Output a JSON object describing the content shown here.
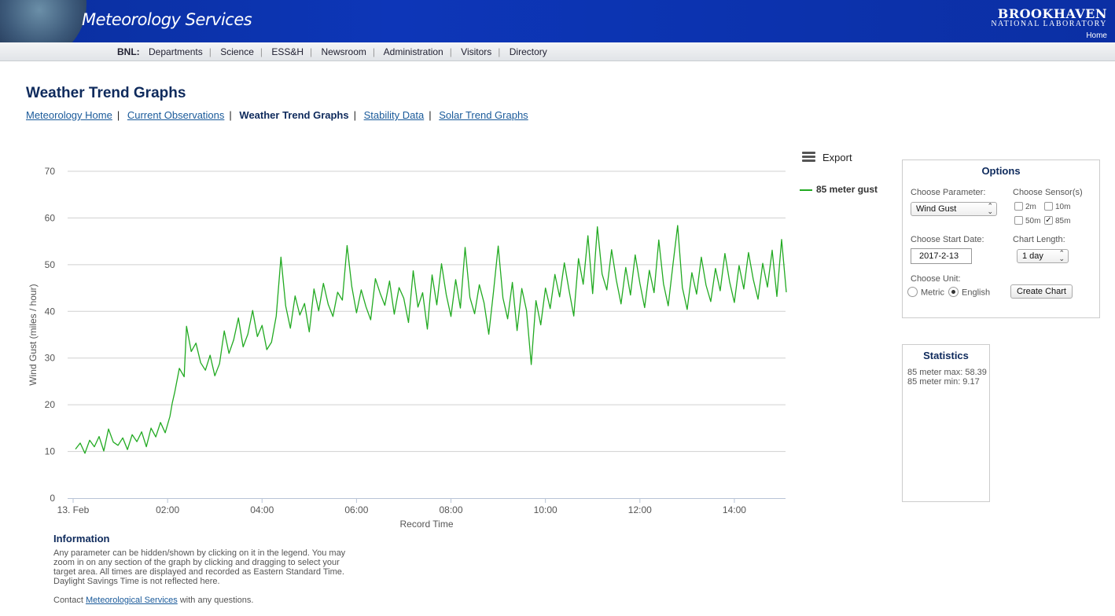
{
  "header": {
    "site_title": "Meteorology Services",
    "logo_top": "BROOKHAVEN",
    "logo_bottom": "NATIONAL LABORATORY",
    "home_link": "Home"
  },
  "nav": {
    "prefix": "BNL:",
    "items": [
      "Departments",
      "Science",
      "ESS&H",
      "Newsroom",
      "Administration",
      "Visitors",
      "Directory"
    ]
  },
  "page": {
    "title": "Weather Trend Graphs",
    "subnav": {
      "items": [
        "Meteorology Home",
        "Current Observations",
        "Weather Trend Graphs",
        "Stability Data",
        "Solar Trend Graphs"
      ],
      "separator": "|"
    }
  },
  "chart_controls": {
    "export_label": "Export",
    "menu_icon": "hamburger-menu-icon"
  },
  "chart_data": {
    "type": "line",
    "ylabel": "Wind Gust (miles / hour)",
    "xlabel": "Record Time",
    "ylim": [
      0,
      70
    ],
    "yticks": [
      "0",
      "10",
      "20",
      "30",
      "40",
      "50",
      "60",
      "70"
    ],
    "xtick_labels": [
      "13. Feb",
      "02:00",
      "04:00",
      "06:00",
      "08:00",
      "10:00",
      "12:00",
      "14:00"
    ],
    "x_unit": "hours since 00:00 on 13 Feb",
    "xlim": [
      0,
      15.2
    ],
    "series": [
      {
        "name": "85 meter gust",
        "color": "#22aa22",
        "points": [
          [
            0.05,
            10.5
          ],
          [
            0.15,
            11.8
          ],
          [
            0.25,
            9.6
          ],
          [
            0.35,
            12.4
          ],
          [
            0.45,
            11.0
          ],
          [
            0.55,
            13.2
          ],
          [
            0.65,
            10.1
          ],
          [
            0.75,
            14.8
          ],
          [
            0.85,
            12.0
          ],
          [
            0.95,
            11.3
          ],
          [
            1.05,
            12.9
          ],
          [
            1.15,
            10.4
          ],
          [
            1.25,
            13.6
          ],
          [
            1.35,
            12.1
          ],
          [
            1.45,
            14.2
          ],
          [
            1.55,
            11.0
          ],
          [
            1.65,
            15.0
          ],
          [
            1.75,
            13.1
          ],
          [
            1.85,
            16.2
          ],
          [
            1.95,
            14.0
          ],
          [
            2.05,
            17.5
          ],
          [
            2.1,
            20.4
          ],
          [
            2.15,
            22.6
          ],
          [
            2.25,
            27.8
          ],
          [
            2.35,
            26.0
          ],
          [
            2.4,
            36.8
          ],
          [
            2.5,
            31.4
          ],
          [
            2.6,
            33.2
          ],
          [
            2.7,
            29.0
          ],
          [
            2.8,
            27.4
          ],
          [
            2.9,
            30.6
          ],
          [
            3.0,
            26.2
          ],
          [
            3.1,
            28.8
          ],
          [
            3.2,
            35.8
          ],
          [
            3.3,
            31.0
          ],
          [
            3.4,
            33.9
          ],
          [
            3.5,
            38.6
          ],
          [
            3.6,
            32.4
          ],
          [
            3.7,
            35.1
          ],
          [
            3.8,
            40.2
          ],
          [
            3.9,
            34.6
          ],
          [
            4.0,
            37.0
          ],
          [
            4.1,
            31.8
          ],
          [
            4.2,
            33.4
          ],
          [
            4.3,
            39.0
          ],
          [
            4.4,
            51.6
          ],
          [
            4.5,
            41.2
          ],
          [
            4.6,
            36.4
          ],
          [
            4.7,
            43.3
          ],
          [
            4.8,
            39.2
          ],
          [
            4.9,
            41.7
          ],
          [
            5.0,
            35.6
          ],
          [
            5.1,
            44.8
          ],
          [
            5.2,
            40.1
          ],
          [
            5.3,
            46.0
          ],
          [
            5.4,
            41.5
          ],
          [
            5.5,
            38.9
          ],
          [
            5.6,
            44.1
          ],
          [
            5.7,
            42.4
          ],
          [
            5.8,
            54.1
          ],
          [
            5.9,
            45.3
          ],
          [
            6.0,
            39.7
          ],
          [
            6.1,
            44.6
          ],
          [
            6.2,
            41.0
          ],
          [
            6.3,
            38.2
          ],
          [
            6.4,
            47.0
          ],
          [
            6.5,
            43.9
          ],
          [
            6.6,
            41.3
          ],
          [
            6.7,
            46.5
          ],
          [
            6.8,
            39.4
          ],
          [
            6.9,
            45.1
          ],
          [
            7.0,
            42.8
          ],
          [
            7.1,
            37.6
          ],
          [
            7.2,
            48.7
          ],
          [
            7.3,
            40.9
          ],
          [
            7.4,
            44.0
          ],
          [
            7.5,
            36.2
          ],
          [
            7.6,
            47.8
          ],
          [
            7.7,
            41.4
          ],
          [
            7.8,
            50.2
          ],
          [
            7.9,
            43.6
          ],
          [
            8.0,
            38.9
          ],
          [
            8.1,
            46.8
          ],
          [
            8.2,
            40.7
          ],
          [
            8.3,
            53.7
          ],
          [
            8.4,
            43.0
          ],
          [
            8.5,
            39.5
          ],
          [
            8.6,
            45.7
          ],
          [
            8.7,
            41.8
          ],
          [
            8.8,
            35.1
          ],
          [
            8.9,
            44.2
          ],
          [
            9.0,
            54.0
          ],
          [
            9.1,
            42.9
          ],
          [
            9.2,
            38.4
          ],
          [
            9.3,
            46.2
          ],
          [
            9.4,
            35.9
          ],
          [
            9.5,
            44.9
          ],
          [
            9.6,
            40.2
          ],
          [
            9.7,
            28.6
          ],
          [
            9.8,
            42.3
          ],
          [
            9.9,
            37.1
          ],
          [
            10.0,
            45.0
          ],
          [
            10.1,
            40.6
          ],
          [
            10.2,
            47.9
          ],
          [
            10.3,
            43.1
          ],
          [
            10.4,
            50.4
          ],
          [
            10.5,
            44.5
          ],
          [
            10.6,
            39.0
          ],
          [
            10.7,
            51.3
          ],
          [
            10.8,
            45.8
          ],
          [
            10.9,
            56.2
          ],
          [
            11.0,
            43.8
          ],
          [
            11.1,
            58.1
          ],
          [
            11.2,
            48.0
          ],
          [
            11.3,
            44.6
          ],
          [
            11.4,
            53.2
          ],
          [
            11.5,
            46.7
          ],
          [
            11.6,
            41.6
          ],
          [
            11.7,
            49.4
          ],
          [
            11.8,
            43.5
          ],
          [
            11.9,
            52.1
          ],
          [
            12.0,
            46.0
          ],
          [
            12.1,
            40.8
          ],
          [
            12.2,
            48.8
          ],
          [
            12.3,
            44.0
          ],
          [
            12.4,
            55.3
          ],
          [
            12.5,
            45.9
          ],
          [
            12.6,
            41.2
          ],
          [
            12.7,
            50.0
          ],
          [
            12.8,
            58.39
          ],
          [
            12.9,
            45.1
          ],
          [
            13.0,
            40.4
          ],
          [
            13.1,
            48.3
          ],
          [
            13.2,
            43.7
          ],
          [
            13.3,
            51.6
          ],
          [
            13.4,
            45.6
          ],
          [
            13.5,
            42.1
          ],
          [
            13.6,
            49.2
          ],
          [
            13.7,
            44.4
          ],
          [
            13.8,
            52.4
          ],
          [
            13.9,
            46.3
          ],
          [
            14.0,
            41.9
          ],
          [
            14.1,
            49.8
          ],
          [
            14.2,
            44.8
          ],
          [
            14.3,
            52.6
          ],
          [
            14.4,
            46.9
          ],
          [
            14.5,
            42.6
          ],
          [
            14.6,
            50.3
          ],
          [
            14.7,
            45.2
          ],
          [
            14.8,
            53.1
          ],
          [
            14.9,
            43.2
          ],
          [
            15.0,
            55.4
          ],
          [
            15.1,
            44.1
          ]
        ]
      }
    ]
  },
  "legend": {
    "items": [
      {
        "label": "85 meter gust",
        "color": "#22aa22"
      }
    ]
  },
  "options": {
    "title": "Options",
    "parameter_label": "Choose Parameter:",
    "parameter_value": "Wind Gust",
    "sensors_label": "Choose Sensor(s)",
    "sensors": [
      {
        "label": "2m",
        "checked": false
      },
      {
        "label": "10m",
        "checked": false
      },
      {
        "label": "50m",
        "checked": false
      },
      {
        "label": "85m",
        "checked": true
      }
    ],
    "start_date_label": "Choose Start Date:",
    "start_date_value": "2017-2-13",
    "length_label": "Chart Length:",
    "length_value": "1 day",
    "unit_label": "Choose Unit:",
    "units": [
      {
        "label": "Metric",
        "selected": false
      },
      {
        "label": "English",
        "selected": true
      }
    ],
    "create_button": "Create Chart"
  },
  "statistics": {
    "title": "Statistics",
    "lines": [
      "85 meter max: 58.39",
      "85 meter min: 9.17"
    ]
  },
  "information": {
    "title": "Information",
    "text": "Any parameter can be hidden/shown by clicking on it in the legend. You may zoom in on any section of the graph by clicking and dragging to select your target area. All times are displayed and recorded as Eastern Standard Time. Daylight Savings Time is not reflected here.",
    "contact_prefix": "Contact",
    "contact_link": "Meteorological Services",
    "contact_suffix": "with any questions."
  }
}
